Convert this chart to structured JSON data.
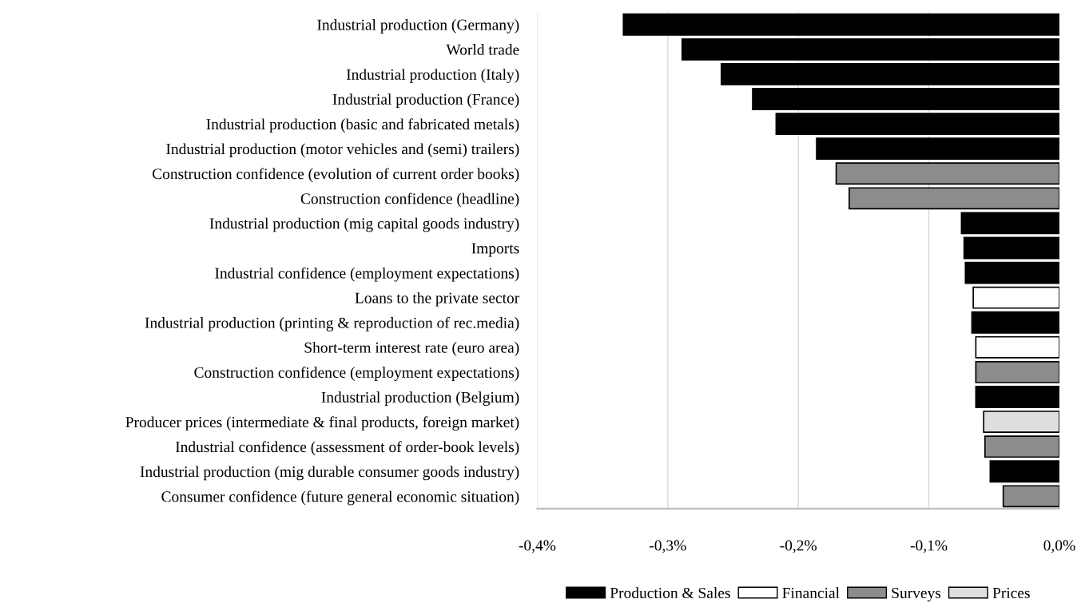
{
  "chart_data": {
    "type": "bar",
    "orientation": "horizontal",
    "categories": [
      "Industrial production (Germany)",
      "World trade",
      "Industrial production (Italy)",
      "Industrial production (France)",
      "Industrial production (basic and fabricated metals)",
      "Industrial production (motor vehicles and (semi) trailers)",
      "Construction confidence (evolution of current order books)",
      "Construction confidence (headline)",
      "Industrial production (mig capital goods industry)",
      "Imports",
      "Industrial confidence (employment expectations)",
      "Loans to the private sector",
      "Industrial production (printing & reproduction of rec.media)",
      "Short-term interest rate (euro area)",
      "Construction confidence (employment expectations)",
      "Industrial production (Belgium)",
      "Producer prices (intermediate & final products, foreign market)",
      "Industrial confidence (assessment of order-book levels)",
      "Industrial production (mig durable consumer goods industry)",
      "Consumer confidence (future general economic situation)"
    ],
    "series": [
      {
        "name": "Production & Sales",
        "color": "#000000",
        "values": [
          -0.334,
          -0.289,
          -0.259,
          -0.235,
          -0.217,
          -0.186,
          null,
          null,
          -0.075,
          -0.073,
          -0.072,
          null,
          -0.067,
          null,
          null,
          -0.064,
          null,
          null,
          -0.053,
          null
        ]
      },
      {
        "name": "Financial",
        "color": "#ffffff",
        "values": [
          null,
          null,
          null,
          null,
          null,
          null,
          null,
          null,
          null,
          null,
          null,
          -0.066,
          null,
          -0.064,
          null,
          null,
          null,
          null,
          null,
          null
        ]
      },
      {
        "name": "Surveys",
        "color": "#8c8c8c",
        "values": [
          null,
          null,
          null,
          null,
          null,
          null,
          -0.171,
          -0.161,
          null,
          null,
          null,
          null,
          null,
          null,
          -0.064,
          null,
          null,
          -0.057,
          null,
          -0.043
        ]
      },
      {
        "name": "Prices",
        "color": "#dedede",
        "values": [
          null,
          null,
          null,
          null,
          null,
          null,
          null,
          null,
          null,
          null,
          null,
          null,
          null,
          null,
          null,
          null,
          -0.058,
          null,
          null,
          null
        ]
      }
    ],
    "xlim": [
      -0.4,
      0.0
    ],
    "xticks": [
      {
        "value": -0.4,
        "label": "-0,4%"
      },
      {
        "value": -0.3,
        "label": "-0,3%"
      },
      {
        "value": -0.2,
        "label": "-0,2%"
      },
      {
        "value": -0.1,
        "label": "-0,1%"
      },
      {
        "value": 0.0,
        "label": "0,0%"
      }
    ],
    "grid": "x",
    "legend": "bottom"
  }
}
